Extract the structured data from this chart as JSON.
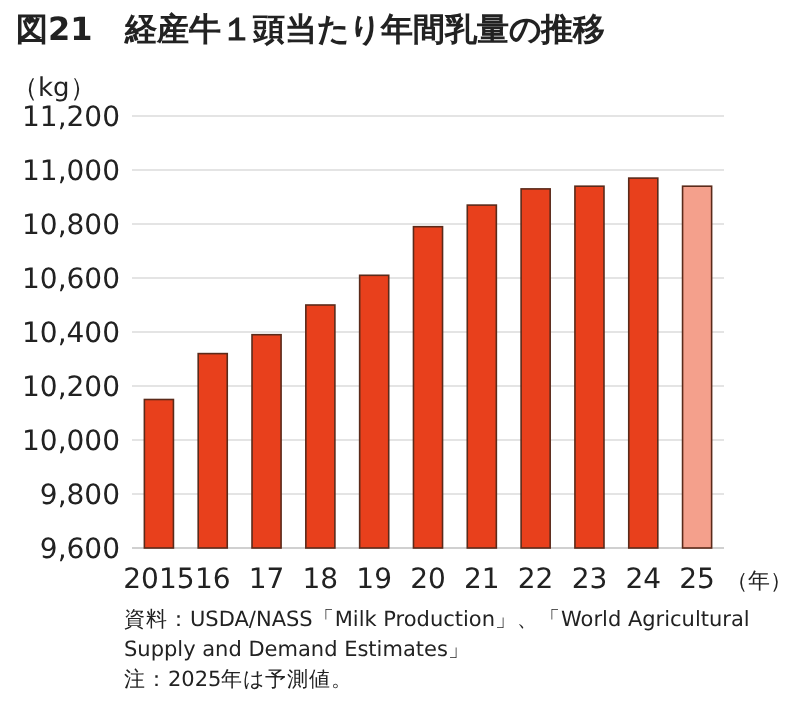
{
  "chart_data": {
    "type": "bar",
    "title": "図21　経産牛１頭当たり年間乳量の推移",
    "ylabel": "（kg）",
    "xlabel": "（年）",
    "categories": [
      "2015",
      "16",
      "17",
      "18",
      "19",
      "20",
      "21",
      "22",
      "23",
      "24",
      "25"
    ],
    "values": [
      10150,
      10320,
      10390,
      10500,
      10610,
      10790,
      10870,
      10930,
      10940,
      10970,
      10940
    ],
    "colors": [
      "#e8401c",
      "#e8401c",
      "#e8401c",
      "#e8401c",
      "#e8401c",
      "#e8401c",
      "#e8401c",
      "#e8401c",
      "#e8401c",
      "#e8401c",
      "#f4a08c"
    ],
    "ylim": [
      9600,
      11200
    ],
    "yticks": [
      {
        "value": 9600,
        "label": "9,600"
      },
      {
        "value": 9800,
        "label": "9,800"
      },
      {
        "value": 10000,
        "label": "10,000"
      },
      {
        "value": 10200,
        "label": "10,200"
      },
      {
        "value": 10400,
        "label": "10,400"
      },
      {
        "value": 10600,
        "label": "10,600"
      },
      {
        "value": 10800,
        "label": "10,800"
      },
      {
        "value": 11000,
        "label": "11,000"
      },
      {
        "value": 11200,
        "label": "11,200"
      }
    ],
    "grid": "y",
    "annotations": [
      "資料：USDA/NASS「Milk Production」、「World Agricultural Supply and Demand Estimates」",
      "注：2025年は予測値。"
    ]
  }
}
